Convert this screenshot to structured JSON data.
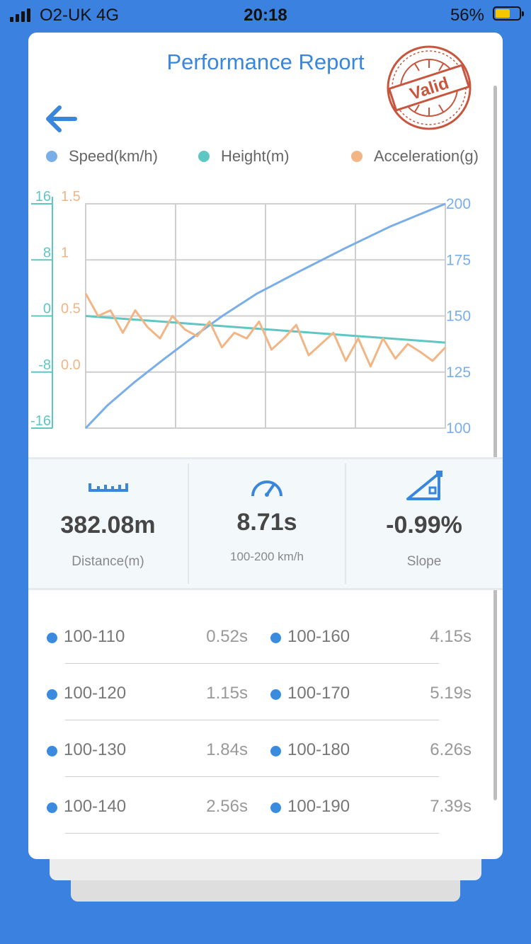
{
  "status_bar": {
    "carrier": "O2-UK  4G",
    "time": "20:18",
    "battery": "56%"
  },
  "header": {
    "title": "Performance Report",
    "stamp_text": "Valid"
  },
  "legend": [
    {
      "label": "Speed(km/h)",
      "color": "#7aaee8"
    },
    {
      "label": "Height(m)",
      "color": "#5ec7c3"
    },
    {
      "label": "Acceleration(g)",
      "color": "#f2b585"
    }
  ],
  "chart_data": {
    "type": "line",
    "height_axis": {
      "ticks": [
        "16",
        "8",
        "0",
        "-8",
        "-16"
      ],
      "ylim": [
        -16,
        16
      ]
    },
    "accel_axis": {
      "ticks": [
        "1.5",
        "1",
        "0.5",
        "0.0"
      ],
      "ylim": [
        -0.5,
        1.5
      ]
    },
    "speed_axis": {
      "ticks": [
        "200",
        "175",
        "150",
        "125",
        "100"
      ],
      "ylim": [
        100,
        200
      ]
    },
    "series": [
      {
        "name": "Speed(km/h)",
        "axis": "speed",
        "color": "#7aaee8",
        "x": [
          0,
          0.52,
          1.15,
          1.84,
          2.56,
          3.31,
          4.15,
          5.19,
          6.26,
          7.39,
          8.71
        ],
        "y": [
          100,
          110,
          120,
          130,
          140,
          150,
          160,
          170,
          180,
          190,
          200
        ]
      },
      {
        "name": "Height(m)",
        "axis": "height",
        "color": "#5ec7c3",
        "x": [
          0,
          8.71
        ],
        "y": [
          0,
          -3.8
        ]
      },
      {
        "name": "Acceleration(g)",
        "axis": "accel",
        "color": "#f2b585",
        "x": [
          0,
          0.3,
          0.6,
          0.9,
          1.2,
          1.5,
          1.8,
          2.1,
          2.4,
          2.7,
          3.0,
          3.3,
          3.6,
          3.9,
          4.2,
          4.5,
          4.8,
          5.1,
          5.4,
          5.7,
          6.0,
          6.3,
          6.6,
          6.9,
          7.2,
          7.5,
          7.8,
          8.1,
          8.4,
          8.71
        ],
        "y": [
          0.7,
          0.5,
          0.55,
          0.35,
          0.55,
          0.4,
          0.3,
          0.5,
          0.38,
          0.32,
          0.45,
          0.22,
          0.35,
          0.3,
          0.45,
          0.2,
          0.3,
          0.42,
          0.15,
          0.25,
          0.35,
          0.1,
          0.3,
          0.05,
          0.3,
          0.12,
          0.25,
          0.18,
          0.1,
          0.22
        ]
      }
    ]
  },
  "stats": [
    {
      "value": "382.08m",
      "label": "Distance(m)"
    },
    {
      "value": "8.71s",
      "label": "100-200 km/h"
    },
    {
      "value": "-0.99%",
      "label": "Slope"
    }
  ],
  "splits": [
    {
      "left": {
        "range": "100-110",
        "time": "0.52s"
      },
      "right": {
        "range": "100-160",
        "time": "4.15s"
      }
    },
    {
      "left": {
        "range": "100-120",
        "time": "1.15s"
      },
      "right": {
        "range": "100-170",
        "time": "5.19s"
      }
    },
    {
      "left": {
        "range": "100-130",
        "time": "1.84s"
      },
      "right": {
        "range": "100-180",
        "time": "6.26s"
      }
    },
    {
      "left": {
        "range": "100-140",
        "time": "2.56s"
      },
      "right": {
        "range": "100-190",
        "time": "7.39s"
      }
    }
  ]
}
